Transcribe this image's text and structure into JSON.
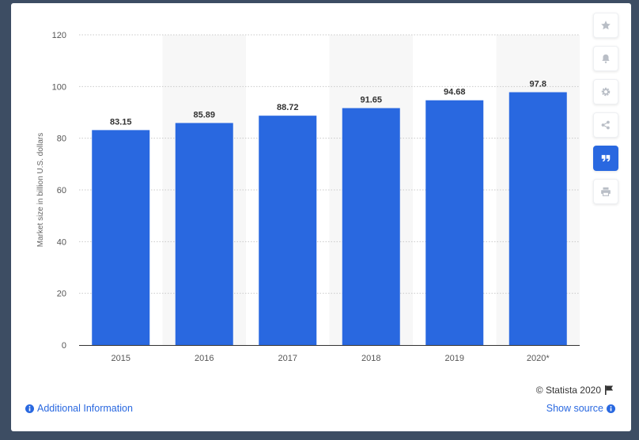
{
  "chart_data": {
    "type": "bar",
    "categories": [
      "2015",
      "2016",
      "2017",
      "2018",
      "2019",
      "2020*"
    ],
    "values": [
      83.15,
      85.89,
      88.72,
      91.65,
      94.68,
      97.8
    ],
    "value_labels": [
      "83.15",
      "85.89",
      "88.72",
      "91.65",
      "94.68",
      "97.8"
    ],
    "title": "",
    "xlabel": "",
    "ylabel": "Market size in billion U.S. dollars",
    "ylim": [
      0,
      120
    ],
    "yticks": [
      0,
      20,
      40,
      60,
      80,
      100,
      120
    ],
    "grid": true,
    "bar_color": "#2968e0",
    "band_color": "#f7f7f7"
  },
  "toolbar": {
    "items": [
      {
        "icon": "star-icon",
        "active": false
      },
      {
        "icon": "bell-icon",
        "active": false
      },
      {
        "icon": "gear-icon",
        "active": false
      },
      {
        "icon": "share-icon",
        "active": false
      },
      {
        "icon": "quote-icon",
        "active": true
      },
      {
        "icon": "print-icon",
        "active": false
      }
    ]
  },
  "footer": {
    "credit": "© Statista 2020",
    "additional_info": "Additional Information",
    "show_source": "Show source"
  },
  "colors": {
    "accent": "#2968e0",
    "background": "#3d4d63"
  }
}
